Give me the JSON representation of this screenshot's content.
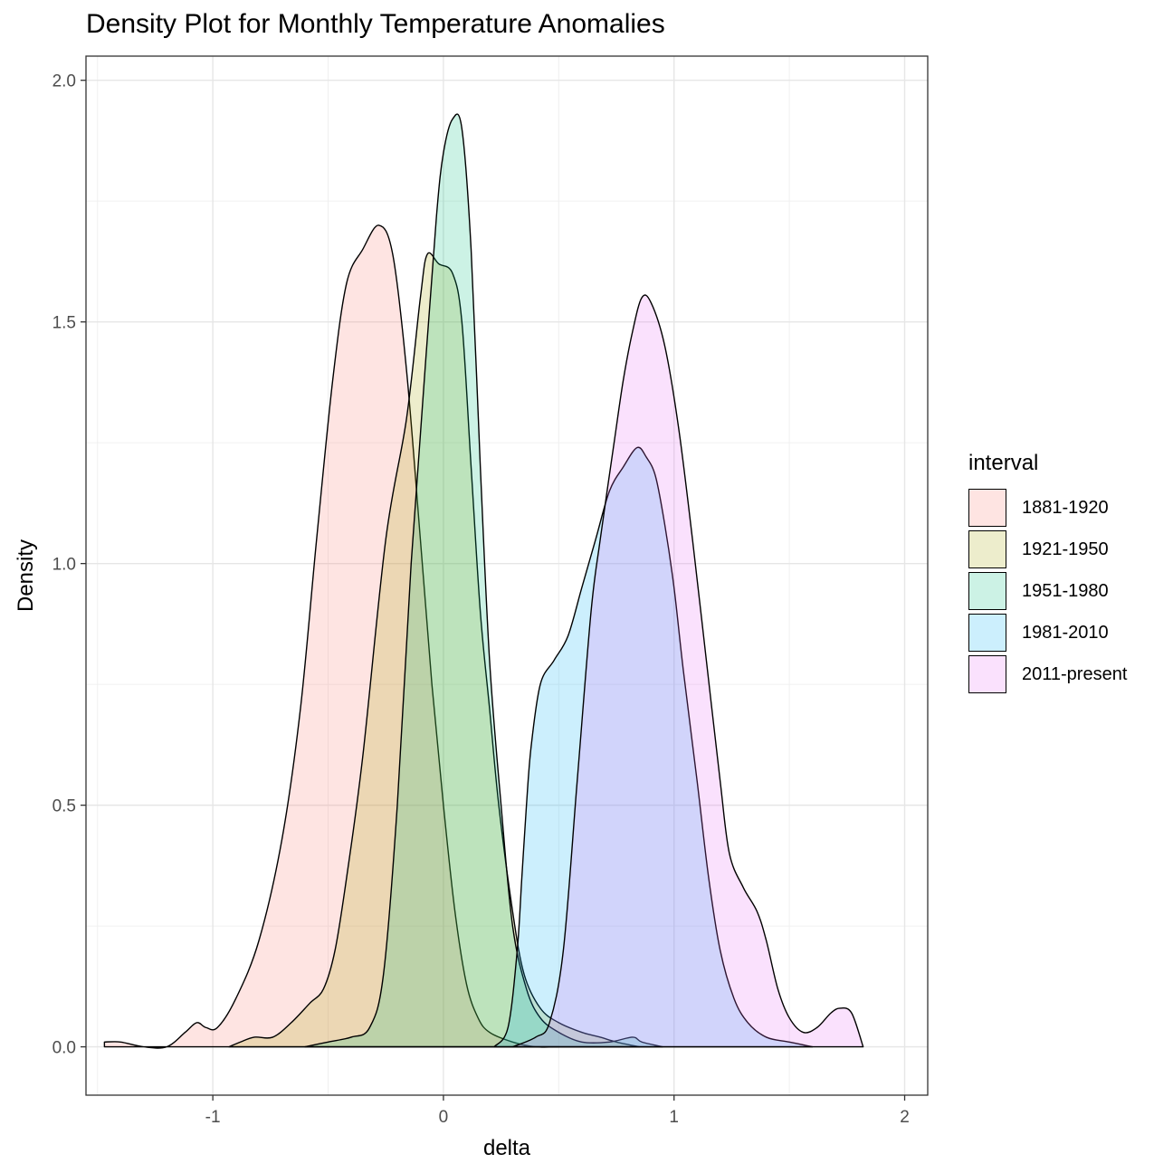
{
  "chart_data": {
    "type": "area",
    "title": "Density Plot for Monthly Temperature Anomalies",
    "xlabel": "delta",
    "ylabel": "Density",
    "xlim": [
      -1.55,
      2.1
    ],
    "ylim": [
      -0.1,
      2.05
    ],
    "x_ticks": [
      -1,
      0,
      1,
      2
    ],
    "x_tick_labels": [
      "-1",
      "0",
      "1",
      "2"
    ],
    "y_ticks": [
      0,
      0.5,
      1,
      1.5,
      2
    ],
    "y_tick_labels": [
      "0.0",
      "0.5",
      "1.0",
      "1.5",
      "2.0"
    ],
    "grid": true,
    "legend_title": "interval",
    "legend_position": "right",
    "series": [
      {
        "name": "1881-1920",
        "color": "#F8766D",
        "points": [
          [
            -1.47,
            0.01
          ],
          [
            -1.4,
            0.01
          ],
          [
            -1.3,
            0.0
          ],
          [
            -1.2,
            0.0
          ],
          [
            -1.12,
            0.03
          ],
          [
            -1.07,
            0.05
          ],
          [
            -1.03,
            0.04
          ],
          [
            -0.98,
            0.04
          ],
          [
            -0.9,
            0.1
          ],
          [
            -0.8,
            0.22
          ],
          [
            -0.7,
            0.43
          ],
          [
            -0.62,
            0.7
          ],
          [
            -0.55,
            1.05
          ],
          [
            -0.48,
            1.38
          ],
          [
            -0.42,
            1.58
          ],
          [
            -0.35,
            1.65
          ],
          [
            -0.28,
            1.7
          ],
          [
            -0.22,
            1.64
          ],
          [
            -0.16,
            1.4
          ],
          [
            -0.1,
            1.05
          ],
          [
            -0.05,
            0.75
          ],
          [
            0.0,
            0.5
          ],
          [
            0.05,
            0.28
          ],
          [
            0.1,
            0.13
          ],
          [
            0.15,
            0.06
          ],
          [
            0.2,
            0.03
          ],
          [
            0.3,
            0.01
          ],
          [
            0.4,
            0.0
          ],
          [
            0.5,
            0.0
          ]
        ]
      },
      {
        "name": "1921-1950",
        "color": "#A3A500",
        "points": [
          [
            -0.93,
            0.0
          ],
          [
            -0.88,
            0.01
          ],
          [
            -0.82,
            0.02
          ],
          [
            -0.74,
            0.02
          ],
          [
            -0.66,
            0.05
          ],
          [
            -0.58,
            0.09
          ],
          [
            -0.52,
            0.12
          ],
          [
            -0.47,
            0.2
          ],
          [
            -0.42,
            0.35
          ],
          [
            -0.35,
            0.6
          ],
          [
            -0.25,
            1.05
          ],
          [
            -0.16,
            1.3
          ],
          [
            -0.1,
            1.55
          ],
          [
            -0.07,
            1.64
          ],
          [
            -0.02,
            1.62
          ],
          [
            0.04,
            1.6
          ],
          [
            0.08,
            1.5
          ],
          [
            0.12,
            1.2
          ],
          [
            0.16,
            0.9
          ],
          [
            0.2,
            0.7
          ],
          [
            0.24,
            0.5
          ],
          [
            0.3,
            0.28
          ],
          [
            0.35,
            0.15
          ],
          [
            0.42,
            0.08
          ],
          [
            0.5,
            0.05
          ],
          [
            0.6,
            0.03
          ],
          [
            0.68,
            0.02
          ],
          [
            0.75,
            0.01
          ],
          [
            0.85,
            0.0
          ]
        ]
      },
      {
        "name": "1951-1980",
        "color": "#00BF7D",
        "points": [
          [
            -0.6,
            0.0
          ],
          [
            -0.5,
            0.01
          ],
          [
            -0.4,
            0.02
          ],
          [
            -0.32,
            0.04
          ],
          [
            -0.26,
            0.15
          ],
          [
            -0.2,
            0.5
          ],
          [
            -0.14,
            1.0
          ],
          [
            -0.08,
            1.4
          ],
          [
            -0.03,
            1.72
          ],
          [
            0.0,
            1.85
          ],
          [
            0.04,
            1.92
          ],
          [
            0.08,
            1.9
          ],
          [
            0.12,
            1.65
          ],
          [
            0.16,
            1.2
          ],
          [
            0.2,
            0.8
          ],
          [
            0.25,
            0.5
          ],
          [
            0.3,
            0.25
          ],
          [
            0.36,
            0.12
          ],
          [
            0.42,
            0.06
          ],
          [
            0.5,
            0.03
          ],
          [
            0.6,
            0.01
          ],
          [
            0.72,
            0.01
          ],
          [
            0.82,
            0.02
          ],
          [
            0.86,
            0.01
          ],
          [
            0.95,
            0.0
          ]
        ]
      },
      {
        "name": "1981-2010",
        "color": "#00B0F6",
        "points": [
          [
            0.22,
            0.0
          ],
          [
            0.28,
            0.04
          ],
          [
            0.32,
            0.2
          ],
          [
            0.34,
            0.35
          ],
          [
            0.36,
            0.5
          ],
          [
            0.38,
            0.62
          ],
          [
            0.42,
            0.75
          ],
          [
            0.48,
            0.8
          ],
          [
            0.54,
            0.85
          ],
          [
            0.6,
            0.95
          ],
          [
            0.66,
            1.05
          ],
          [
            0.72,
            1.15
          ],
          [
            0.78,
            1.2
          ],
          [
            0.84,
            1.24
          ],
          [
            0.88,
            1.22
          ],
          [
            0.92,
            1.18
          ],
          [
            0.96,
            1.08
          ],
          [
            1.0,
            0.95
          ],
          [
            1.04,
            0.78
          ],
          [
            1.1,
            0.55
          ],
          [
            1.15,
            0.35
          ],
          [
            1.2,
            0.2
          ],
          [
            1.26,
            0.1
          ],
          [
            1.32,
            0.05
          ],
          [
            1.4,
            0.02
          ],
          [
            1.5,
            0.01
          ],
          [
            1.6,
            0.0
          ]
        ]
      },
      {
        "name": "2011-present",
        "color": "#E76BF3",
        "points": [
          [
            0.3,
            0.0
          ],
          [
            0.4,
            0.02
          ],
          [
            0.46,
            0.05
          ],
          [
            0.52,
            0.2
          ],
          [
            0.58,
            0.55
          ],
          [
            0.64,
            0.9
          ],
          [
            0.68,
            1.05
          ],
          [
            0.74,
            1.25
          ],
          [
            0.78,
            1.38
          ],
          [
            0.82,
            1.48
          ],
          [
            0.86,
            1.55
          ],
          [
            0.9,
            1.54
          ],
          [
            0.96,
            1.45
          ],
          [
            1.02,
            1.28
          ],
          [
            1.08,
            1.05
          ],
          [
            1.14,
            0.8
          ],
          [
            1.2,
            0.55
          ],
          [
            1.24,
            0.4
          ],
          [
            1.3,
            0.33
          ],
          [
            1.36,
            0.28
          ],
          [
            1.4,
            0.22
          ],
          [
            1.45,
            0.12
          ],
          [
            1.5,
            0.06
          ],
          [
            1.56,
            0.03
          ],
          [
            1.62,
            0.04
          ],
          [
            1.68,
            0.07
          ],
          [
            1.72,
            0.08
          ],
          [
            1.77,
            0.07
          ],
          [
            1.82,
            0.0
          ]
        ]
      }
    ]
  }
}
